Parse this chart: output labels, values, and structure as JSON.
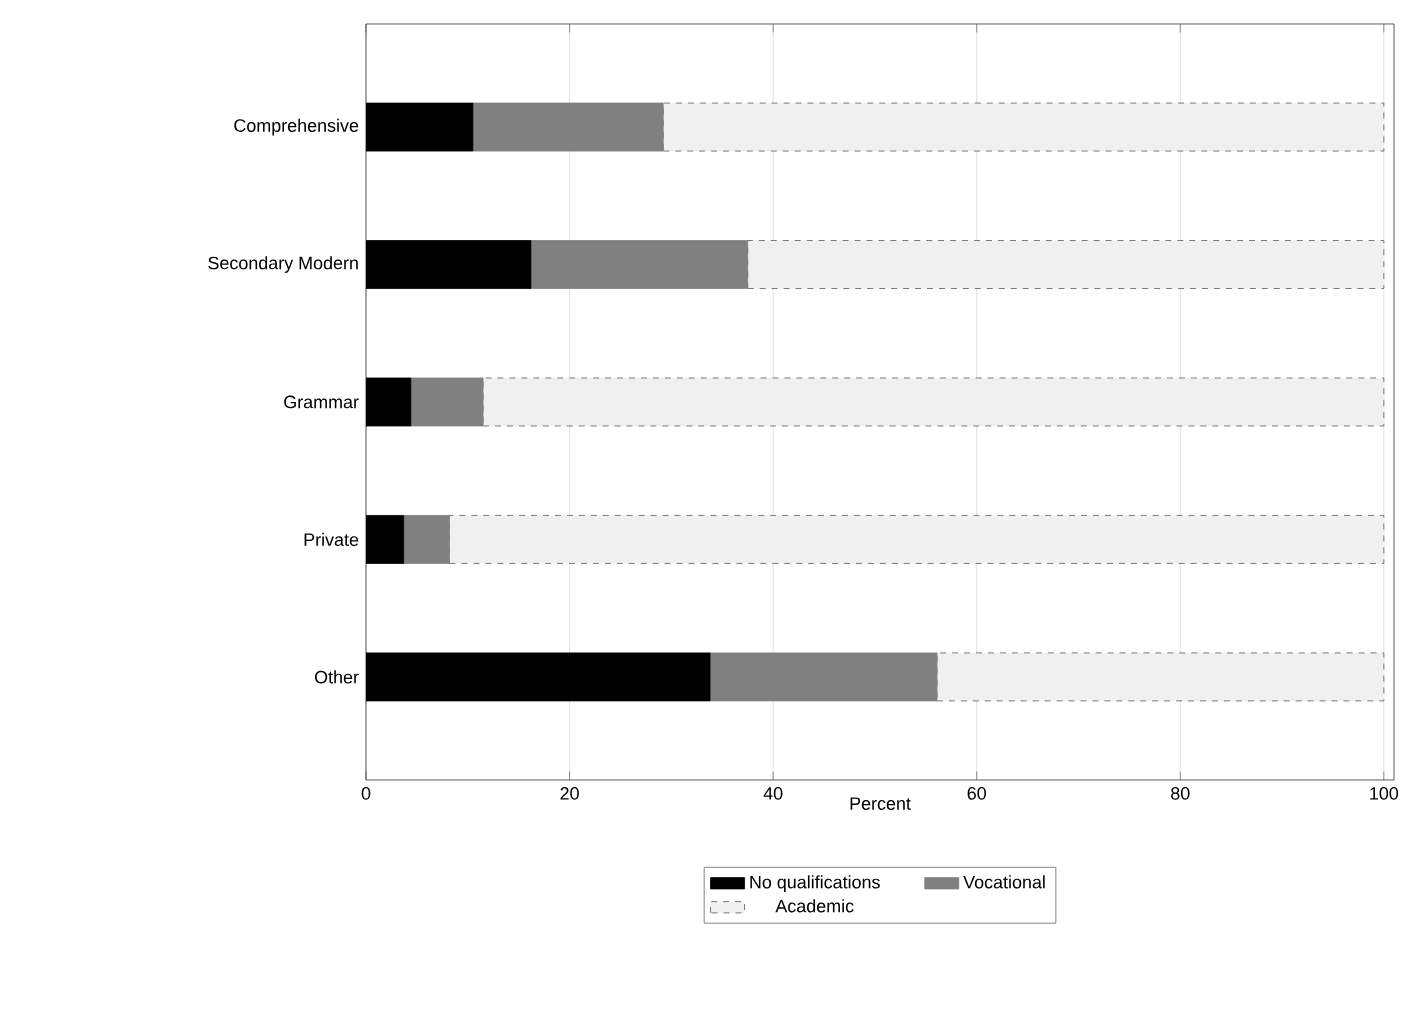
{
  "chart_data": {
    "type": "bar",
    "orientation": "horizontal",
    "stacked": true,
    "xlabel": "Percent",
    "categories": [
      "Comprehensive",
      "Secondary Modern",
      "Grammar",
      "Private",
      "Other"
    ],
    "series": [
      {
        "name": "No qualifications",
        "color": "#000000",
        "values": [
          10.5,
          16.2,
          4.4,
          3.7,
          33.8
        ]
      },
      {
        "name": "Vocational",
        "color": "#808080",
        "values": [
          18.7,
          21.3,
          7.1,
          4.5,
          22.3
        ]
      },
      {
        "name": "Academic",
        "color": "#f0f0f0",
        "line_style": "dashed",
        "values": [
          70.8,
          62.5,
          88.5,
          91.8,
          43.9
        ]
      }
    ],
    "xlim": [
      0,
      101
    ],
    "xticks": [
      0,
      20,
      40,
      60,
      80,
      100
    ],
    "grid": "x",
    "legend": "bottom"
  }
}
